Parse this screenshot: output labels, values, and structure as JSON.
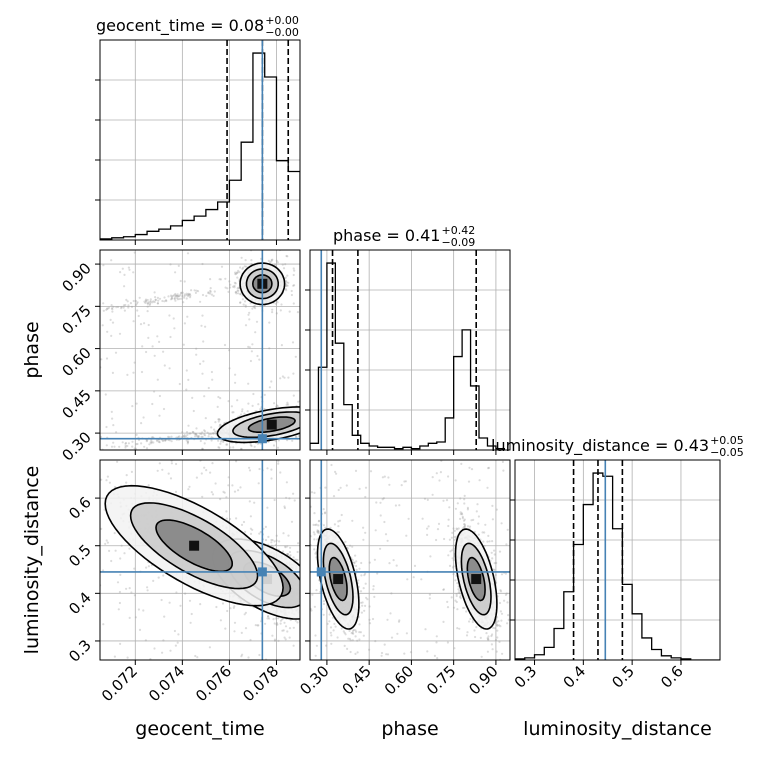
{
  "chart_data": {
    "type": "corner",
    "parameters": [
      {
        "name": "geocent_time",
        "truth": 0.0774,
        "range": [
          0.0705,
          0.079
        ],
        "ticks": [
          0.072,
          0.074,
          0.076,
          0.078
        ],
        "tick_labels": [
          "0.072",
          "0.074",
          "0.076",
          "0.078"
        ],
        "median": 0.0774,
        "q_low": 0.0759,
        "q_high": 0.0785
      },
      {
        "name": "phase",
        "truth": 0.28,
        "range": [
          0.24,
          0.95
        ],
        "ticks": [
          0.3,
          0.45,
          0.6,
          0.75,
          0.9
        ],
        "tick_labels": [
          "0.30",
          "0.45",
          "0.60",
          "0.75",
          "0.90"
        ],
        "median": 0.41,
        "q_low": 0.32,
        "q_high": 0.83
      },
      {
        "name": "luminosity_distance",
        "truth": 0.445,
        "range": [
          0.26,
          0.68
        ],
        "ticks": [
          0.3,
          0.4,
          0.5,
          0.6
        ],
        "tick_labels": [
          "0.3",
          "0.4",
          "0.5",
          "0.6"
        ],
        "median": 0.43,
        "q_low": 0.38,
        "q_high": 0.48
      }
    ],
    "titles": [
      {
        "param": "geocent_time",
        "label": "geocent_time = 0.08",
        "plus": "+0.00",
        "minus": "−0.00"
      },
      {
        "param": "phase",
        "label": "phase = 0.41",
        "plus": "+0.42",
        "minus": "−0.09"
      },
      {
        "param": "luminosity_distance",
        "label": "luminosity_distance = 0.43",
        "plus": "+0.05",
        "minus": "−0.05"
      }
    ],
    "histograms": {
      "geocent_time": {
        "edges": [
          0.0705,
          0.071,
          0.0715,
          0.072,
          0.0725,
          0.073,
          0.0735,
          0.074,
          0.0745,
          0.075,
          0.0755,
          0.076,
          0.0765,
          0.077,
          0.0775,
          0.078,
          0.0785,
          0.079
        ],
        "counts": [
          1,
          2,
          3,
          5,
          8,
          10,
          13,
          18,
          22,
          28,
          35,
          55,
          90,
          172,
          150,
          73,
          63
        ]
      },
      "phase": {
        "edges": [
          0.24,
          0.27,
          0.3,
          0.33,
          0.36,
          0.39,
          0.42,
          0.45,
          0.48,
          0.51,
          0.54,
          0.57,
          0.6,
          0.63,
          0.66,
          0.69,
          0.72,
          0.75,
          0.78,
          0.81,
          0.84,
          0.87,
          0.9,
          0.93
        ],
        "counts": [
          5,
          62,
          140,
          80,
          34,
          11,
          5,
          3,
          2,
          2,
          1,
          2,
          1,
          3,
          5,
          6,
          24,
          70,
          90,
          48,
          9,
          3,
          1
        ]
      },
      "luminosity_distance": {
        "edges": [
          0.26,
          0.28,
          0.3,
          0.32,
          0.34,
          0.36,
          0.38,
          0.4,
          0.42,
          0.44,
          0.46,
          0.48,
          0.5,
          0.52,
          0.54,
          0.56,
          0.58,
          0.6,
          0.62,
          0.64,
          0.66,
          0.68
        ],
        "counts": [
          1,
          2,
          5,
          12,
          30,
          65,
          110,
          148,
          178,
          175,
          125,
          72,
          44,
          21,
          10,
          4,
          2,
          1,
          0,
          0,
          0
        ]
      }
    },
    "pairs": [
      {
        "x": "geocent_time",
        "y": "phase",
        "modes": [
          {
            "cx": 0.0774,
            "cy": 0.83,
            "sx": 0.00045,
            "sy": 0.035,
            "weight": 0.42,
            "corr": 0.0
          },
          {
            "cx": 0.0778,
            "cy": 0.33,
            "sx": 0.0011,
            "sy": 0.03,
            "weight": 0.48,
            "corr": 0.5
          },
          {
            "cx": 0.0735,
            "cy": 0.78,
            "sx": 0.0016,
            "sy": 0.025,
            "weight": 0.05,
            "corr": 0.95
          },
          {
            "cx": 0.0735,
            "cy": 0.28,
            "sx": 0.0016,
            "sy": 0.02,
            "weight": 0.05,
            "corr": 0.9
          }
        ]
      },
      {
        "x": "geocent_time",
        "y": "luminosity_distance",
        "modes": [
          {
            "cx": 0.0776,
            "cy": 0.43,
            "sx": 0.0011,
            "sy": 0.04,
            "weight": 0.8,
            "corr": -0.55
          },
          {
            "cx": 0.0745,
            "cy": 0.5,
            "sx": 0.0018,
            "sy": 0.06,
            "weight": 0.2,
            "corr": -0.7
          }
        ]
      },
      {
        "x": "phase",
        "y": "luminosity_distance",
        "modes": [
          {
            "cx": 0.34,
            "cy": 0.43,
            "sx": 0.035,
            "sy": 0.05,
            "weight": 0.5,
            "corr": -0.5
          },
          {
            "cx": 0.83,
            "cy": 0.43,
            "sx": 0.035,
            "sy": 0.05,
            "weight": 0.5,
            "corr": -0.5
          }
        ]
      }
    ],
    "grid": true,
    "truth_color": "#4682b4",
    "hist_color": "#000000",
    "scatter_color": "#9a9a9a"
  }
}
